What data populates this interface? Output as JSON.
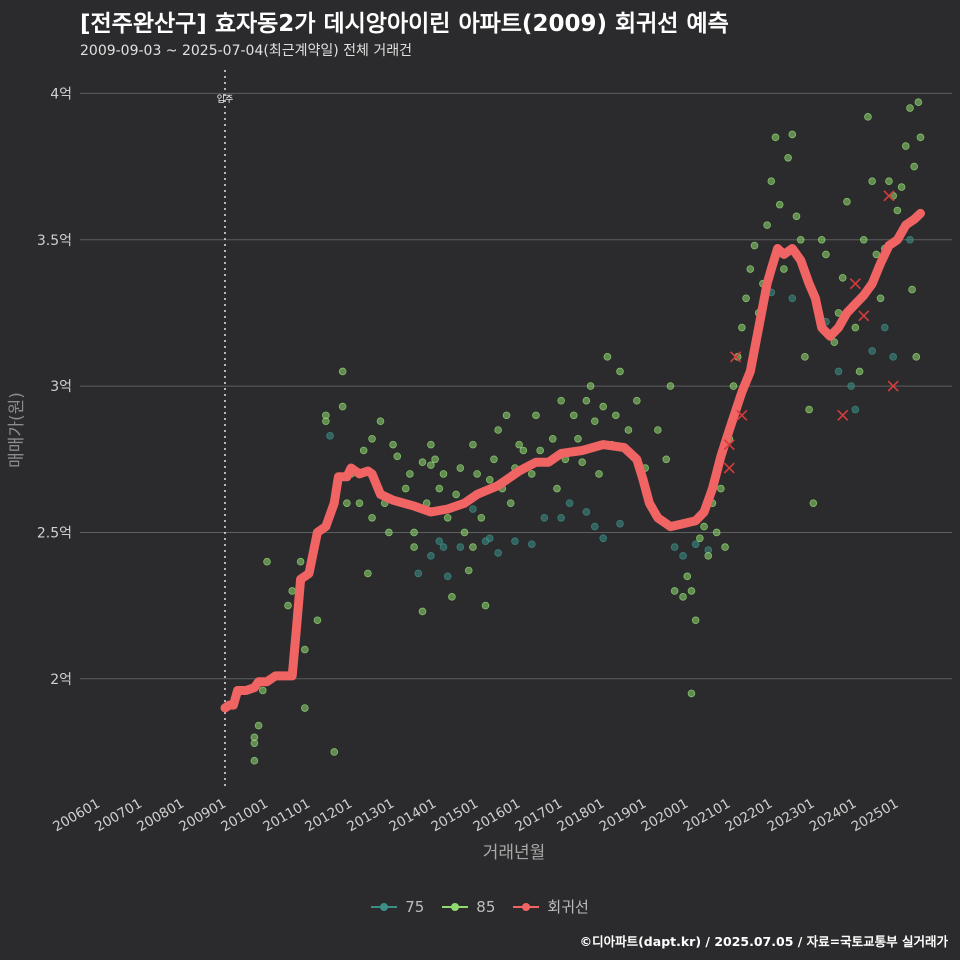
{
  "title": "[전주완산구] 효자동2가 데시앙아이린 아파트(2009) 회귀선 예측",
  "subtitle": "2009-09-03 ~ 2025-07-04(최근계약일) 전체 거래건",
  "footer": "©디아파트(dapt.kr) / 2025.07.05 / 자료=국토교통부 실거래가",
  "colors": {
    "background": "#2b2b2d",
    "grid": "#5e5e60",
    "s75": "#3c8f86",
    "s85": "#8fd970",
    "regression": "#f06464",
    "marker": "#d43c3c"
  },
  "legend": [
    {
      "label": "75",
      "color": "#3c8f86",
      "kind": "point"
    },
    {
      "label": "85",
      "color": "#8fd970",
      "kind": "point"
    },
    {
      "label": "회귀선",
      "color": "#f06464",
      "kind": "line"
    }
  ],
  "chart_data": {
    "type": "scatter",
    "title": "[전주완산구] 효자동2가 데시앙아이린 아파트(2009) 회귀선 예측",
    "xlabel": "거래년월",
    "ylabel": "매매가(원)",
    "xlim": [
      2005.55,
      2026.3
    ],
    "ylim": [
      1.62,
      4.08
    ],
    "y_ticks": [
      2,
      2.5,
      3,
      3.5,
      4
    ],
    "y_tick_labels": [
      "2억",
      "2.5억",
      "3억",
      "3.5억",
      "4억"
    ],
    "x_ticks": [
      2006,
      2007,
      2008,
      2009,
      2010,
      2011,
      2012,
      2013,
      2014,
      2015,
      2016,
      2017,
      2018,
      2019,
      2020,
      2021,
      2022,
      2023,
      2024,
      2025
    ],
    "x_tick_labels": [
      "200601",
      "200701",
      "200801",
      "200901",
      "201001",
      "201101",
      "201201",
      "201301",
      "201401",
      "201501",
      "201601",
      "201701",
      "201801",
      "201901",
      "202001",
      "202101",
      "202201",
      "202301",
      "202401",
      "202501"
    ],
    "annotation": {
      "x": 2009.0,
      "label": "입주"
    },
    "series": [
      {
        "name": "75",
        "color": "#3c8f86",
        "points": [
          [
            2011.5,
            2.83
          ],
          [
            2013.6,
            2.36
          ],
          [
            2013.9,
            2.42
          ],
          [
            2014.1,
            2.47
          ],
          [
            2014.2,
            2.45
          ],
          [
            2014.3,
            2.35
          ],
          [
            2014.6,
            2.45
          ],
          [
            2014.9,
            2.58
          ],
          [
            2015.2,
            2.47
          ],
          [
            2015.3,
            2.48
          ],
          [
            2015.5,
            2.43
          ],
          [
            2015.9,
            2.47
          ],
          [
            2016.3,
            2.46
          ],
          [
            2016.6,
            2.55
          ],
          [
            2017.0,
            2.55
          ],
          [
            2017.2,
            2.6
          ],
          [
            2017.6,
            2.57
          ],
          [
            2017.8,
            2.52
          ],
          [
            2018.0,
            2.48
          ],
          [
            2018.4,
            2.53
          ],
          [
            2019.7,
            2.45
          ],
          [
            2019.9,
            2.42
          ],
          [
            2020.2,
            2.46
          ],
          [
            2020.5,
            2.44
          ],
          [
            2021.3,
            2.98
          ],
          [
            2022.0,
            3.32
          ],
          [
            2022.5,
            3.3
          ],
          [
            2023.6,
            3.05
          ],
          [
            2023.9,
            3.0
          ],
          [
            2024.0,
            2.92
          ],
          [
            2024.4,
            3.12
          ],
          [
            2024.7,
            3.2
          ],
          [
            2024.9,
            3.1
          ],
          [
            2025.3,
            3.5
          ],
          [
            2023.3,
            3.22
          ]
        ]
      },
      {
        "name": "85",
        "color": "#8fd970",
        "points": [
          [
            2009.7,
            1.72
          ],
          [
            2009.7,
            1.78
          ],
          [
            2009.7,
            1.8
          ],
          [
            2009.8,
            1.84
          ],
          [
            2009.9,
            1.96
          ],
          [
            2010.0,
            2.4
          ],
          [
            2010.5,
            2.25
          ],
          [
            2010.6,
            2.3
          ],
          [
            2010.8,
            2.4
          ],
          [
            2010.9,
            2.1
          ],
          [
            2010.9,
            1.9
          ],
          [
            2011.2,
            2.2
          ],
          [
            2011.4,
            2.9
          ],
          [
            2011.4,
            2.88
          ],
          [
            2011.6,
            1.75
          ],
          [
            2011.8,
            2.93
          ],
          [
            2011.8,
            3.05
          ],
          [
            2011.9,
            2.6
          ],
          [
            2012.0,
            2.7
          ],
          [
            2012.2,
            2.6
          ],
          [
            2012.3,
            2.78
          ],
          [
            2012.4,
            2.36
          ],
          [
            2012.5,
            2.55
          ],
          [
            2012.5,
            2.82
          ],
          [
            2012.7,
            2.88
          ],
          [
            2012.8,
            2.6
          ],
          [
            2012.9,
            2.5
          ],
          [
            2013.0,
            2.8
          ],
          [
            2013.1,
            2.76
          ],
          [
            2013.3,
            2.65
          ],
          [
            2013.4,
            2.7
          ],
          [
            2013.5,
            2.5
          ],
          [
            2013.5,
            2.45
          ],
          [
            2013.7,
            2.74
          ],
          [
            2013.7,
            2.23
          ],
          [
            2013.8,
            2.6
          ],
          [
            2013.9,
            2.8
          ],
          [
            2013.9,
            2.73
          ],
          [
            2014.0,
            2.75
          ],
          [
            2014.1,
            2.65
          ],
          [
            2014.2,
            2.7
          ],
          [
            2014.3,
            2.55
          ],
          [
            2014.4,
            2.28
          ],
          [
            2014.5,
            2.63
          ],
          [
            2014.6,
            2.72
          ],
          [
            2014.7,
            2.5
          ],
          [
            2014.8,
            2.37
          ],
          [
            2014.9,
            2.45
          ],
          [
            2014.9,
            2.8
          ],
          [
            2015.0,
            2.7
          ],
          [
            2015.1,
            2.55
          ],
          [
            2015.2,
            2.25
          ],
          [
            2015.3,
            2.68
          ],
          [
            2015.4,
            2.75
          ],
          [
            2015.5,
            2.85
          ],
          [
            2015.6,
            2.65
          ],
          [
            2015.7,
            2.9
          ],
          [
            2015.8,
            2.6
          ],
          [
            2015.9,
            2.72
          ],
          [
            2016.0,
            2.8
          ],
          [
            2016.1,
            2.78
          ],
          [
            2016.3,
            2.7
          ],
          [
            2016.4,
            2.9
          ],
          [
            2016.5,
            2.78
          ],
          [
            2016.6,
            2.74
          ],
          [
            2016.8,
            2.82
          ],
          [
            2016.9,
            2.65
          ],
          [
            2017.0,
            2.95
          ],
          [
            2017.1,
            2.75
          ],
          [
            2017.3,
            2.9
          ],
          [
            2017.4,
            2.82
          ],
          [
            2017.5,
            2.74
          ],
          [
            2017.6,
            2.95
          ],
          [
            2017.7,
            3.0
          ],
          [
            2017.8,
            2.88
          ],
          [
            2017.9,
            2.7
          ],
          [
            2018.0,
            2.93
          ],
          [
            2018.1,
            3.1
          ],
          [
            2018.2,
            2.8
          ],
          [
            2018.3,
            2.9
          ],
          [
            2018.4,
            3.05
          ],
          [
            2018.6,
            2.85
          ],
          [
            2018.8,
            2.95
          ],
          [
            2019.0,
            2.72
          ],
          [
            2019.3,
            2.85
          ],
          [
            2019.5,
            2.75
          ],
          [
            2019.6,
            3.0
          ],
          [
            2019.7,
            2.3
          ],
          [
            2019.9,
            2.28
          ],
          [
            2020.0,
            2.35
          ],
          [
            2020.1,
            2.3
          ],
          [
            2020.1,
            1.95
          ],
          [
            2020.2,
            2.2
          ],
          [
            2020.3,
            2.48
          ],
          [
            2020.4,
            2.52
          ],
          [
            2020.5,
            2.42
          ],
          [
            2020.6,
            2.6
          ],
          [
            2020.7,
            2.5
          ],
          [
            2020.8,
            2.65
          ],
          [
            2020.9,
            2.45
          ],
          [
            2021.0,
            2.82
          ],
          [
            2021.1,
            3.0
          ],
          [
            2021.2,
            3.1
          ],
          [
            2021.3,
            3.2
          ],
          [
            2021.4,
            3.3
          ],
          [
            2021.5,
            3.4
          ],
          [
            2021.6,
            3.48
          ],
          [
            2021.7,
            3.25
          ],
          [
            2021.8,
            3.35
          ],
          [
            2021.9,
            3.55
          ],
          [
            2022.0,
            3.7
          ],
          [
            2022.1,
            3.85
          ],
          [
            2022.2,
            3.62
          ],
          [
            2022.3,
            3.4
          ],
          [
            2022.4,
            3.78
          ],
          [
            2022.5,
            3.86
          ],
          [
            2022.6,
            3.58
          ],
          [
            2022.7,
            3.5
          ],
          [
            2022.8,
            3.1
          ],
          [
            2022.9,
            2.92
          ],
          [
            2023.0,
            2.6
          ],
          [
            2023.2,
            3.5
          ],
          [
            2023.3,
            3.45
          ],
          [
            2023.5,
            3.15
          ],
          [
            2023.6,
            3.25
          ],
          [
            2023.7,
            3.37
          ],
          [
            2023.8,
            3.63
          ],
          [
            2024.0,
            3.2
          ],
          [
            2024.1,
            3.05
          ],
          [
            2024.2,
            3.5
          ],
          [
            2024.3,
            3.92
          ],
          [
            2024.4,
            3.7
          ],
          [
            2024.5,
            3.45
          ],
          [
            2024.6,
            3.3
          ],
          [
            2024.7,
            3.47
          ],
          [
            2024.8,
            3.7
          ],
          [
            2024.9,
            3.65
          ],
          [
            2025.0,
            3.6
          ],
          [
            2025.1,
            3.68
          ],
          [
            2025.2,
            3.82
          ],
          [
            2025.3,
            3.95
          ],
          [
            2025.35,
            3.33
          ],
          [
            2025.4,
            3.75
          ],
          [
            2025.45,
            3.1
          ],
          [
            2025.5,
            3.97
          ],
          [
            2025.55,
            3.85
          ]
        ]
      }
    ],
    "regression": {
      "name": "회귀선",
      "points": [
        [
          2009.0,
          1.9
        ],
        [
          2009.1,
          1.91
        ],
        [
          2009.2,
          1.91
        ],
        [
          2009.3,
          1.96
        ],
        [
          2009.5,
          1.96
        ],
        [
          2009.7,
          1.97
        ],
        [
          2009.8,
          1.99
        ],
        [
          2010.0,
          1.99
        ],
        [
          2010.2,
          2.01
        ],
        [
          2010.6,
          2.01
        ],
        [
          2010.7,
          2.17
        ],
        [
          2010.8,
          2.34
        ],
        [
          2011.0,
          2.36
        ],
        [
          2011.2,
          2.5
        ],
        [
          2011.4,
          2.52
        ],
        [
          2011.6,
          2.6
        ],
        [
          2011.7,
          2.69
        ],
        [
          2011.9,
          2.69
        ],
        [
          2012.0,
          2.72
        ],
        [
          2012.2,
          2.7
        ],
        [
          2012.4,
          2.71
        ],
        [
          2012.5,
          2.7
        ],
        [
          2012.7,
          2.63
        ],
        [
          2013.0,
          2.61
        ],
        [
          2013.5,
          2.59
        ],
        [
          2013.9,
          2.57
        ],
        [
          2014.3,
          2.58
        ],
        [
          2014.7,
          2.6
        ],
        [
          2015.0,
          2.63
        ],
        [
          2015.5,
          2.66
        ],
        [
          2016.0,
          2.71
        ],
        [
          2016.4,
          2.74
        ],
        [
          2016.7,
          2.74
        ],
        [
          2017.0,
          2.77
        ],
        [
          2017.5,
          2.78
        ],
        [
          2018.0,
          2.8
        ],
        [
          2018.5,
          2.79
        ],
        [
          2018.8,
          2.75
        ],
        [
          2018.95,
          2.68
        ],
        [
          2019.1,
          2.6
        ],
        [
          2019.3,
          2.55
        ],
        [
          2019.6,
          2.52
        ],
        [
          2019.9,
          2.53
        ],
        [
          2020.2,
          2.54
        ],
        [
          2020.4,
          2.57
        ],
        [
          2020.6,
          2.65
        ],
        [
          2020.8,
          2.76
        ],
        [
          2021.0,
          2.85
        ],
        [
          2021.3,
          2.98
        ],
        [
          2021.5,
          3.05
        ],
        [
          2021.7,
          3.2
        ],
        [
          2021.9,
          3.35
        ],
        [
          2022.0,
          3.4
        ],
        [
          2022.15,
          3.47
        ],
        [
          2022.3,
          3.45
        ],
        [
          2022.5,
          3.47
        ],
        [
          2022.7,
          3.43
        ],
        [
          2022.9,
          3.35
        ],
        [
          2023.05,
          3.3
        ],
        [
          2023.2,
          3.2
        ],
        [
          2023.4,
          3.17
        ],
        [
          2023.6,
          3.2
        ],
        [
          2023.8,
          3.25
        ],
        [
          2024.0,
          3.28
        ],
        [
          2024.2,
          3.31
        ],
        [
          2024.4,
          3.35
        ],
        [
          2024.6,
          3.42
        ],
        [
          2024.8,
          3.48
        ],
        [
          2025.0,
          3.5
        ],
        [
          2025.2,
          3.55
        ],
        [
          2025.4,
          3.57
        ],
        [
          2025.55,
          3.59
        ]
      ]
    },
    "highlight_points": [
      [
        2021.0,
        2.72
      ],
      [
        2021.0,
        2.8
      ],
      [
        2021.15,
        3.1
      ],
      [
        2021.3,
        2.9
      ],
      [
        2023.7,
        2.9
      ],
      [
        2024.0,
        3.35
      ],
      [
        2024.2,
        3.24
      ],
      [
        2024.8,
        3.65
      ],
      [
        2024.9,
        3.0
      ]
    ]
  }
}
